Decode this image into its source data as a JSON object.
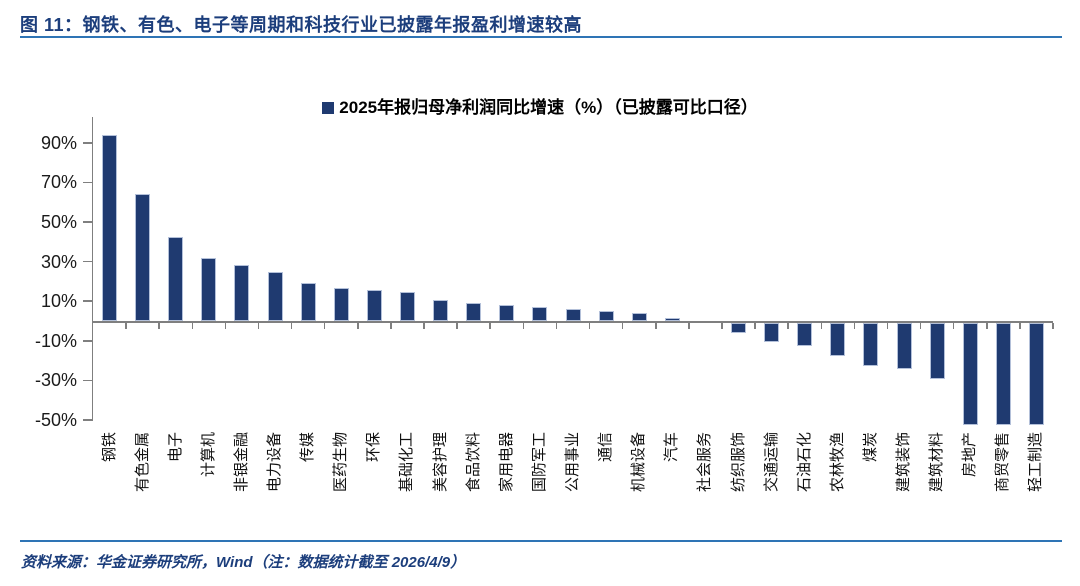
{
  "figure": {
    "title": "图 11：钢铁、有色、电子等周期和科技行业已披露年报盈利增速较高",
    "source_note": "资料来源：华金证券研究所，Wind（注：数据统计截至 2026/4/9）"
  },
  "chart": {
    "legend_label": "2025年报归母净利润同比增速（%）（已披露可比口径）"
  },
  "colors": {
    "bar_fill": "#1F3A70",
    "bar_border": "#B3C0D9",
    "title_text": "#1C3E7C",
    "rule_blue": "#2E74B5",
    "axis_gray": "#7F7F7F",
    "tick_label_text": "#1A1A1A"
  },
  "chart_data": {
    "type": "bar",
    "title": "2025年报归母净利润同比增速（%）（已披露可比口径）",
    "legend": [
      "2025年报归母净利润同比增速（%）（已披露可比口径）"
    ],
    "legend_position": "top-center",
    "unit": "%",
    "grid": false,
    "ylim": [
      -54,
      104
    ],
    "y_ticks": [
      90,
      70,
      50,
      30,
      10,
      -10,
      -30,
      -50
    ],
    "categories": [
      "钢铁",
      "有色金属",
      "电子",
      "计算机",
      "非银金融",
      "电力设备",
      "传媒",
      "医药生物",
      "环保",
      "基础化工",
      "美容护理",
      "食品饮料",
      "家用电器",
      "国防军工",
      "公用事业",
      "通信",
      "机械设备",
      "汽车",
      "社会服务",
      "纺织服饰",
      "交通运输",
      "石油石化",
      "农林牧渔",
      "煤炭",
      "建筑装饰",
      "建筑材料",
      "房地产",
      "商贸零售",
      "轻工制造"
    ],
    "values": [
      94,
      64,
      42.5,
      32,
      28.5,
      25,
      19,
      16.5,
      15.5,
      14.5,
      10.5,
      9,
      8,
      7,
      6,
      5,
      4,
      1.3,
      0,
      -5.5,
      -10,
      -12,
      -17,
      -22,
      -23.5,
      -28.5,
      -52,
      -52,
      -52
    ]
  }
}
